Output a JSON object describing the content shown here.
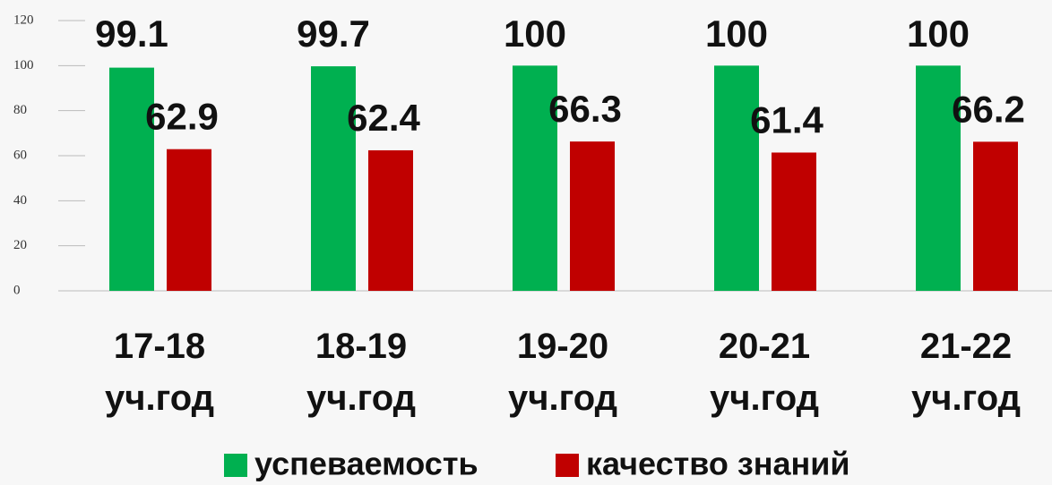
{
  "chart_data": {
    "type": "bar",
    "categories": [
      "17-18 уч.год",
      "18-19 уч.год",
      "19-20 уч.год",
      "20-21 уч.год",
      "21-22 уч.год"
    ],
    "series": [
      {
        "name": "успеваемость",
        "color": "#00b050",
        "values": [
          99.1,
          99.7,
          100,
          100,
          100
        ]
      },
      {
        "name": "качество знаний",
        "color": "#c00000",
        "values": [
          62.9,
          62.4,
          66.3,
          61.4,
          66.2
        ]
      }
    ],
    "ylim": [
      0,
      120
    ],
    "yticks": [
      0,
      20,
      40,
      60,
      80,
      100,
      120
    ]
  }
}
